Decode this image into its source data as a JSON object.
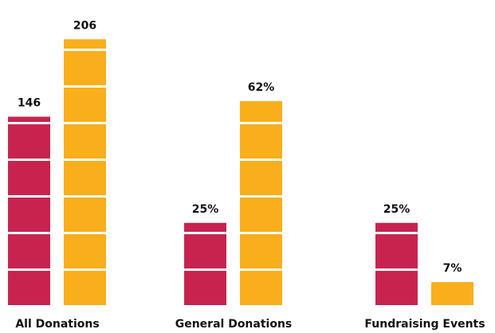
{
  "chart_data": {
    "type": "bar",
    "categories": [
      "All Donations",
      "General Donations",
      "Fundraising Events"
    ],
    "series": [
      {
        "color": "#c8234f",
        "values": [
          146,
          25,
          25
        ],
        "value_labels": [
          "146",
          "25%",
          "25%"
        ]
      },
      {
        "color": "#f9ae1b",
        "values": [
          206,
          62,
          7
        ],
        "value_labels": [
          "206",
          "62%",
          "7%"
        ]
      }
    ]
  }
}
